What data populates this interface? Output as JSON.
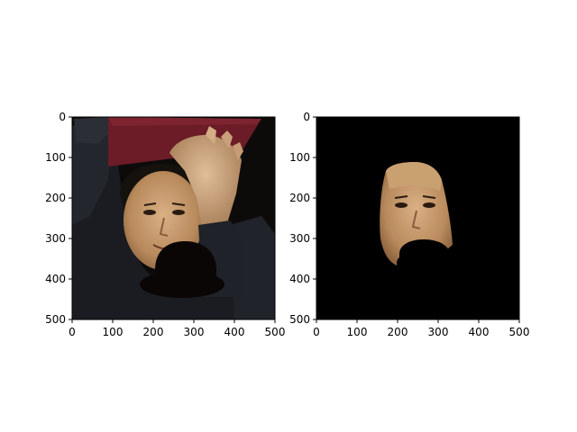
{
  "figure": {
    "background": "#ffffff"
  },
  "chart_data": [
    {
      "type": "image",
      "title": "",
      "xlabel": "",
      "ylabel": "",
      "xlim": [
        0,
        500
      ],
      "ylim": [
        500,
        0
      ],
      "xticks": [
        0,
        100,
        200,
        300,
        400,
        500
      ],
      "yticks": [
        0,
        100,
        200,
        300,
        400,
        500
      ],
      "grid": false,
      "content": "photo of a man in a black shirt holding up a dark red folder, with a black occluding shape over the lower face"
    },
    {
      "type": "image",
      "title": "",
      "xlabel": "",
      "ylabel": "",
      "xlim": [
        0,
        500
      ],
      "ylim": [
        500,
        0
      ],
      "xticks": [
        0,
        100,
        200,
        300,
        400,
        500
      ],
      "yticks": [
        0,
        100,
        200,
        300,
        400,
        500
      ],
      "grid": false,
      "content": "segmentation mask output showing only the face region on a black background, with the occluded area removed"
    }
  ],
  "colors": {
    "photo_background": "#0d0b0a",
    "shirt": "#1a1c22",
    "folder": "#6b1c26",
    "skin": "#c59b6e",
    "hair": "#15110d",
    "occluder": "#0a0605",
    "mask_background": "#000000"
  }
}
